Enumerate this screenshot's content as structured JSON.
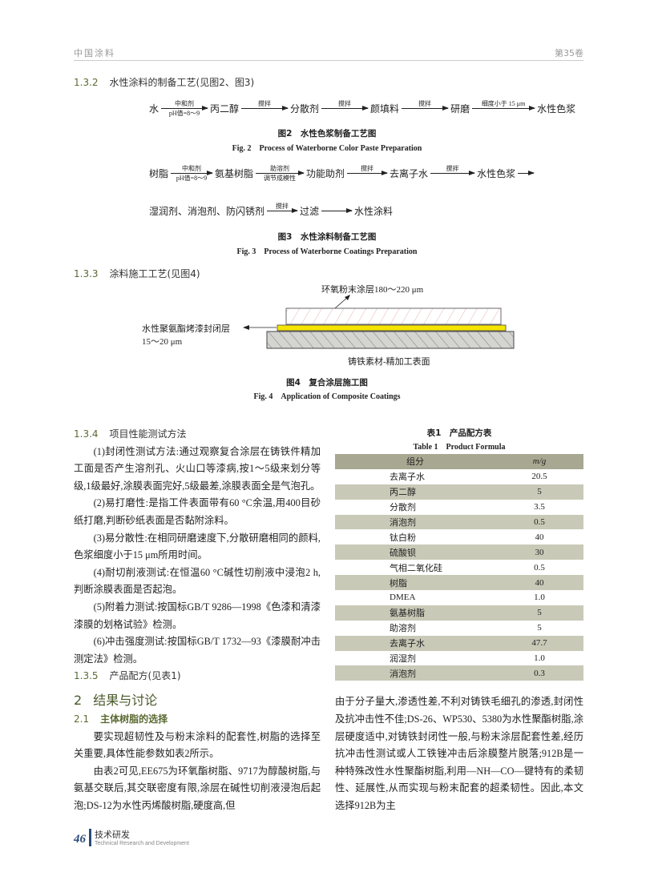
{
  "header": {
    "journal": "中国涂料",
    "volume": "第35卷"
  },
  "sections": {
    "s132": {
      "num": "1.3.2",
      "title": "水性涂料的制备工艺(见图2、图3)"
    },
    "s133": {
      "num": "1.3.3",
      "title": "涂料施工工艺(见图4)"
    },
    "s134": {
      "num": "1.3.4",
      "title": "项目性能测试方法"
    },
    "s135": {
      "num": "1.3.5",
      "title": "产品配方(见表1)"
    },
    "s2": {
      "num": "2",
      "title": "结果与讨论"
    },
    "s21": {
      "num": "2.1",
      "title": "主体树脂的选择"
    }
  },
  "fig2": {
    "nodes": [
      "水",
      "丙二醇",
      "分散剂",
      "颜填料",
      "研磨",
      "水性色浆"
    ],
    "arrows": [
      {
        "top": "中和剂",
        "bottom": "pH值=8～9"
      },
      {
        "top": "搅拌",
        "bottom": ""
      },
      {
        "top": "搅拌",
        "bottom": ""
      },
      {
        "top": "搅拌",
        "bottom": ""
      },
      {
        "top": "细度小于 15 μm",
        "bottom": ""
      }
    ],
    "caption_cn": "图2　水性色浆制备工艺图",
    "caption_en": "Fig. 2　Process of Waterborne Color Paste Preparation"
  },
  "fig3": {
    "row1": [
      "树脂",
      "氨基树脂",
      "功能助剂",
      "去离子水",
      "水性色浆"
    ],
    "row1_arrows": [
      {
        "top": "中和剂",
        "bottom": "pH值=8～9"
      },
      {
        "top": "助溶剂",
        "bottom": "调节成模性"
      },
      {
        "top": "搅拌",
        "bottom": ""
      },
      {
        "top": "搅拌",
        "bottom": ""
      },
      {
        "top": "",
        "bottom": ""
      }
    ],
    "row2": [
      "湿润剂、消泡剂、防闪锈剂",
      "过滤",
      "水性涂料"
    ],
    "row2_arrows": [
      {
        "top": "搅拌",
        "bottom": ""
      },
      {
        "top": "",
        "bottom": ""
      }
    ],
    "caption_cn": "图3　水性涂料制备工艺图",
    "caption_en": "Fig. 3　Process of Waterborne Coatings Preparation"
  },
  "fig4": {
    "top_label": "环氧粉末涂层180～220 μm",
    "seal_label_1": "水性聚氨酯烤漆封闭层",
    "seal_label_2": "15～20 μm",
    "base_label": "铸铁素材-精加工表面",
    "colors": {
      "seal": "#f5e400",
      "powder_hatch": "#e0a0a0",
      "base": "#d4d4d0"
    },
    "caption_cn": "图4　复合涂层施工图",
    "caption_en": "Fig. 4　Application of Composite Coatings"
  },
  "left_text": [
    "(1)封闭性测试方法:通过观察复合涂层在铸铁件精加工面是否产生溶剂孔、火山口等漆病,按1～5级来划分等级,1级最好,涂膜表面完好,5级最差,涂膜表面全是气泡孔。",
    "(2)易打磨性:是指工件表面带有60 °C余温,用400目砂纸打磨,判断砂纸表面是否黏附涂料。",
    "(3)易分散性:在相同研磨速度下,分散研磨相同的颜料,色浆细度小于15 μm所用时间。",
    "(4)耐切削液测试:在恒温60 °C碱性切削液中浸泡2 h,判断涂膜表面是否起泡。",
    "(5)附着力测试:按国标GB/T 9286—1998《色漆和清漆　漆膜的划格试验》检测。",
    "(6)冲击强度测试:按国标GB/T 1732—93《漆膜耐冲击测定法》检测。"
  ],
  "table1": {
    "caption_cn": "表1　产品配方表",
    "caption_en": "Table 1　Product Formula",
    "headers": [
      "组分",
      "m/g"
    ],
    "rows": [
      [
        "去离子水",
        "20.5"
      ],
      [
        "丙二醇",
        "5"
      ],
      [
        "分散剂",
        "3.5"
      ],
      [
        "消泡剂",
        "0.5"
      ],
      [
        "钛白粉",
        "40"
      ],
      [
        "硫酸钡",
        "30"
      ],
      [
        "气相二氧化硅",
        "0.5"
      ],
      [
        "树脂",
        "40"
      ],
      [
        "DMEA",
        "1.0"
      ],
      [
        "氨基树脂",
        "5"
      ],
      [
        "助溶剂",
        "5"
      ],
      [
        "去离子水",
        "47.7"
      ],
      [
        "润湿剂",
        "1.0"
      ],
      [
        "消泡剂",
        "0.3"
      ]
    ]
  },
  "s21_text": [
    "要实现超韧性及与粉末涂料的配套性,树脂的选择至关重要,具体性能参数如表2所示。",
    "由表2可见,EE675为环氧酯树脂、9717为醇酸树脂,与氨基交联后,其交联密度有限,涂层在碱性切削液浸泡后起泡;DS-12为水性丙烯酸树脂,硬度高,但"
  ],
  "right_bottom_text": "由于分子量大,渗透性差,不利对铸铁毛细孔的渗透,封闭性及抗冲击性不佳;DS-26、WP530、5380为水性聚酯树脂,涂层硬度适中,对铸铁封闭性一般,与粉末涂层配套性差,经历抗冲击性测试或人工铁锉冲击后涂膜整片脱落;912B是一种特殊改性水性聚酯树脂,利用—NH—CO—键特有的柔韧性、延展性,从而实现与粉末配套的超柔韧性。因此,本文选择912B为主",
  "footer": {
    "page": "46",
    "section_cn": "技术研发",
    "section_en": "Technical Research and Development",
    "accent": "#2b4a7a"
  }
}
